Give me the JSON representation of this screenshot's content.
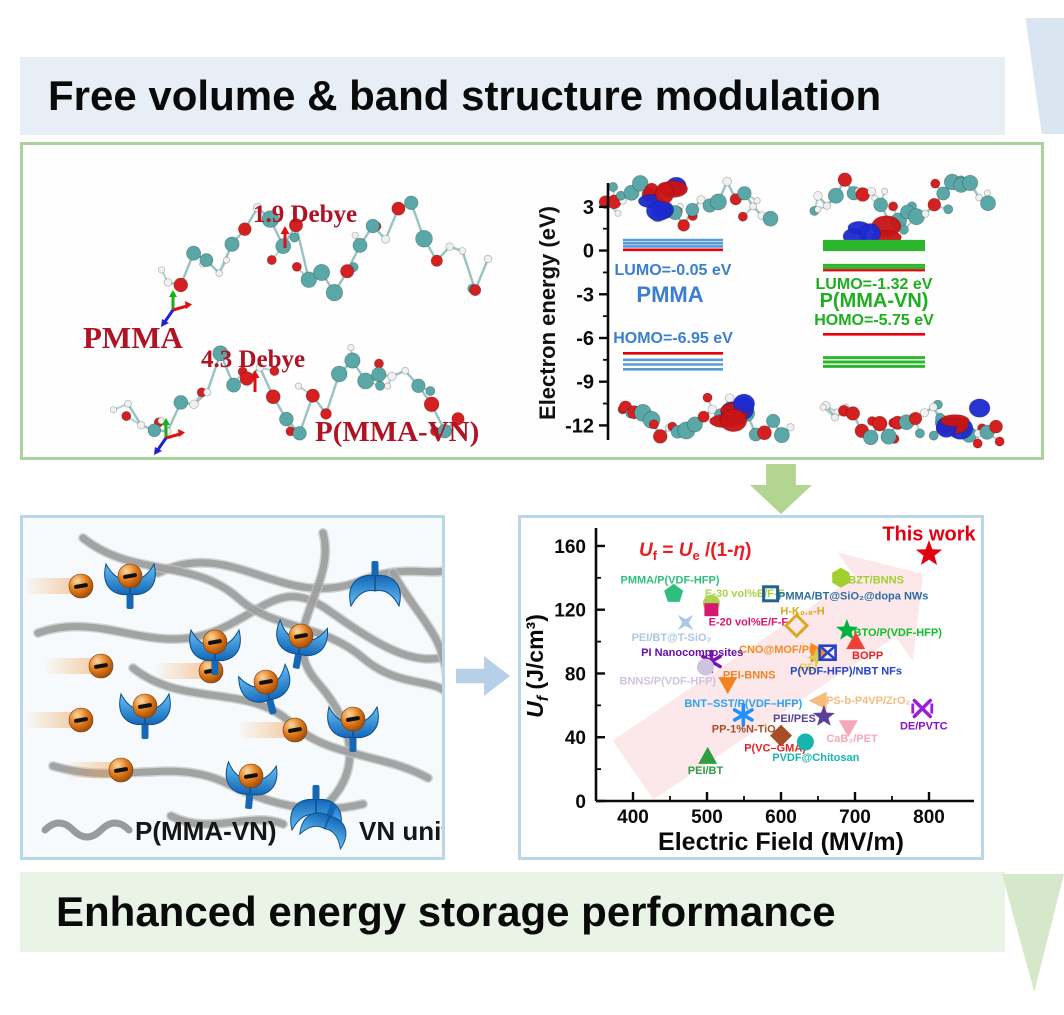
{
  "banners": {
    "top": "Free volume & band structure modulation",
    "bottom": "Enhanced energy storage performance"
  },
  "molecular_panel": {
    "pmma_name": "PMMA",
    "pmma_dipole": "1.9 Debye",
    "vn_name": "P(MMA-VN)",
    "vn_dipole": "4.3 Debye",
    "label_color": "#b01324",
    "energy_axis_label": "Electron energy (eV)",
    "energy_ticks": [
      3,
      0,
      -3,
      -6,
      -9,
      -12
    ],
    "level_red": "#e8000a",
    "pmma_diagram": {
      "lumo_text": "LUMO=-0.05 eV",
      "name": "PMMA",
      "homo_text": "HOMO=-6.95 eV",
      "lumo_levels_blue": [
        0.72,
        0.5,
        0.28
      ],
      "lumo_level_red": 0.05,
      "homo_level_red": -7.05,
      "homo_levels_blue": [
        -7.5,
        -7.82,
        -8.15
      ],
      "text_color": "#3b7fd0",
      "level_color": "#5b9bd5"
    },
    "vn_diagram": {
      "lumo_text": "LUMO=-1.32 eV",
      "name": "P(MMA-VN)",
      "homo_text": "HOMO=-5.75 eV",
      "lumo_band_green": [
        0.62,
        0.44,
        0.26,
        0.08
      ],
      "lumo_levels_green": [
        -1.0,
        -1.18
      ],
      "lumo_level_red": -1.35,
      "homo_level_red": -5.75,
      "homo_levels_green": [
        -7.35,
        -7.65,
        -7.95
      ],
      "text_color": "#1fae1f",
      "level_color": "#2db52d"
    }
  },
  "scheme_panel": {
    "chain_legend": "P(MMA-VN)",
    "vn_legend": "VN unit"
  },
  "chart_data": {
    "type": "scatter",
    "xlabel": "Electric Field (MV/m)",
    "ylabel_u": "U",
    "ylabel_sub": "f",
    "ylabel_rest": " (J/cm³)",
    "formula_color": "#ed1c24",
    "formula_segments": [
      {
        "t": "U",
        "i": 1
      },
      {
        "t": "f",
        "sub": 1
      },
      {
        "t": " = "
      },
      {
        "t": "U",
        "i": 1
      },
      {
        "t": "e",
        "sub": 1
      },
      {
        "t": " /(1-"
      },
      {
        "t": "η",
        "i": 1
      },
      {
        "t": ")"
      }
    ],
    "xlim": [
      350,
      850
    ],
    "ylim": [
      0,
      170
    ],
    "xticks": [
      400,
      500,
      600,
      700,
      800
    ],
    "yticks": [
      0,
      40,
      80,
      120,
      160
    ],
    "points": [
      {
        "name": "PMMA/P(VDF-HFP)",
        "x": 455,
        "y": 130,
        "marker": "pentagon",
        "color": "#2ebf7e",
        "label": "PMMA/P(VDF-HFP)",
        "lx": 450,
        "ly": 139,
        "lcolor": "#2ebf7e",
        "anchor": "middle"
      },
      {
        "name": "E-30 vol%E/F-F",
        "x": 506,
        "y": 124,
        "marker": "circle",
        "color": "#aad34f",
        "label": "E-30 vol%E/F-F",
        "lx": 551,
        "ly": 130.5,
        "lcolor": "#aad34f",
        "anchor": "middle"
      },
      {
        "name": "E-20 vol%E/F-F",
        "x": 506,
        "y": 120,
        "marker": "square",
        "color": "#d6186e",
        "label": "E-20 vol%E/F-F",
        "lx": 556,
        "ly": 112.5,
        "lcolor": "#d6186e",
        "anchor": "middle"
      },
      {
        "name": "PEI/BT@T-SiO2",
        "x": 471,
        "y": 112,
        "marker": "xstar",
        "color": "#aac8e4",
        "label": "PEI/BT@T-SiO₂",
        "lx": 452,
        "ly": 103,
        "lcolor": "#aac8e4",
        "anchor": "middle"
      },
      {
        "name": "PMMA/BT@SiO2@dopa NWs",
        "x": 586,
        "y": 130,
        "marker": "osquare",
        "color": "#1f6391",
        "label": "PMMA/BT@SiO₂@dopa NWs",
        "lx": 596,
        "ly": 129,
        "lcolor": "#2c6ea0",
        "anchor": "start"
      },
      {
        "name": "H-K0.8-H",
        "x": 621,
        "y": 110,
        "marker": "odiamond",
        "color": "#dca81e",
        "label": "H-K₀.₈-H",
        "lx": 629,
        "ly": 119.5,
        "lcolor": "#dca81e",
        "anchor": "middle"
      },
      {
        "name": "BZT/BNNS",
        "x": 681,
        "y": 140,
        "marker": "hexagon",
        "color": "#a2cf2e",
        "label": "BZT/BNNS",
        "lx": 691,
        "ly": 139,
        "lcolor": "#a2cf2e",
        "anchor": "start"
      },
      {
        "name": "This work",
        "x": 800,
        "y": 155,
        "marker": "star5",
        "color": "#e3000f",
        "label": "This work",
        "lx": 800,
        "ly": 166,
        "lcolor": "#e3000f",
        "anchor": "middle",
        "big": true
      },
      {
        "name": "BTO/P(VDF-HFP)",
        "x": 689,
        "y": 107,
        "marker": "star5",
        "color": "#00b33e",
        "label": "BTO/P(VDF-HFP)",
        "lx": 698,
        "ly": 106,
        "lcolor": "#0ec02a",
        "anchor": "start"
      },
      {
        "name": "BOPP",
        "x": 701,
        "y": 100,
        "marker": "triu",
        "color": "#ef4136",
        "label": "BOPP",
        "lx": 717,
        "ly": 91.5,
        "lcolor": "#e02424",
        "anchor": "middle"
      },
      {
        "name": "CNO@MOF/PI",
        "x": 651,
        "y": 93,
        "marker": "trir",
        "color": "#f68b1f",
        "label": "CNO@MOF/PI",
        "lx": 642,
        "ly": 95.5,
        "lcolor": "#f68b1f",
        "anchor": "end"
      },
      {
        "name": "PEI",
        "x": 648,
        "y": 90,
        "marker": "star4",
        "color": "#d9cb52",
        "label": "PEI",
        "lx": 637,
        "ly": 84,
        "lcolor": "#e3d34f",
        "anchor": "middle"
      },
      {
        "name": "P(VDF-HFP)/NBT NFs",
        "x": 663,
        "y": 93,
        "marker": "boxx",
        "color": "#2443c8",
        "label": "P(VDF-HFP)/NBT NFs",
        "lx": 688,
        "ly": 82,
        "lcolor": "#2443c8",
        "anchor": "middle"
      },
      {
        "name": "PI Nanocomposites",
        "x": 506,
        "y": 87.5,
        "marker": "asterisk6",
        "color": "#7a15b5",
        "label": "PI Nanocomposites",
        "lx": 480,
        "ly": 93.5,
        "lcolor": "#6a0dad",
        "anchor": "middle"
      },
      {
        "name": "BNNS/P(VDF-HFP)",
        "x": 498,
        "y": 84,
        "marker": "circle",
        "color": "#cfc3df",
        "label": "BNNS/P(VDF-HFP)",
        "lx": 447,
        "ly": 75.5,
        "lcolor": "#cfc3df",
        "anchor": "middle"
      },
      {
        "name": "PEI-BNNS",
        "x": 528,
        "y": 73,
        "marker": "trid",
        "color": "#f58220",
        "label": "PEI-BNNS",
        "lx": 557,
        "ly": 79.5,
        "lcolor": "#f58220",
        "anchor": "middle"
      },
      {
        "name": "PS-b-P4VP/ZrO2",
        "x": 651,
        "y": 63,
        "marker": "tril",
        "color": "#f5bc7e",
        "label": "PS-b-P4VP/ZrO₂",
        "lx": 661,
        "ly": 63.5,
        "lcolor": "#f5bc7e",
        "anchor": "start"
      },
      {
        "name": "BNT-SST/P(VDF-HFP)",
        "x": 549,
        "y": 54,
        "marker": "asterisk6",
        "color": "#1e90ff",
        "label": "BNT–SST/P(VDF–HFP)",
        "lx": 549,
        "ly": 61.5,
        "lcolor": "#29a3f0",
        "anchor": "middle"
      },
      {
        "name": "PEI/PES",
        "x": 658,
        "y": 53,
        "marker": "star5",
        "color": "#584099",
        "label": "PEI/PES",
        "lx": 647,
        "ly": 52,
        "lcolor": "#584099",
        "anchor": "end"
      },
      {
        "name": "DE/PVTC",
        "x": 791,
        "y": 58,
        "marker": "xlines",
        "color": "#9b1fd8",
        "label": "DE/PVTC",
        "lx": 793,
        "ly": 47.5,
        "lcolor": "#8b10cc",
        "anchor": "middle"
      },
      {
        "name": "CaB2/PET",
        "x": 691,
        "y": 46,
        "marker": "trid",
        "color": "#f6a7b8",
        "label": "CaB₂/PET",
        "lx": 696,
        "ly": 39.5,
        "lcolor": "#f6a7b8",
        "anchor": "middle"
      },
      {
        "name": "PP-1%N-TiO2",
        "x": 600,
        "y": 41,
        "marker": "diamond",
        "color": "#a74e26",
        "label": "PP-1%N-TiO₂",
        "lx": 553,
        "ly": 45.5,
        "lcolor": "#a74e26",
        "anchor": "middle"
      },
      {
        "name": "P(VC-GMA)",
        "x": 600,
        "y": 41,
        "marker": "none",
        "color": "#e02424",
        "label": "P(VC–GMA)",
        "lx": 592,
        "ly": 33.5,
        "lcolor": "#e02424",
        "anchor": "middle"
      },
      {
        "name": "PVDF@Chitosan",
        "x": 633,
        "y": 37,
        "marker": "circle",
        "color": "#17b5ad",
        "label": "PVDF@Chitosan",
        "lx": 647,
        "ly": 27.5,
        "lcolor": "#17b5ad",
        "anchor": "middle"
      },
      {
        "name": "PEI/BT",
        "x": 501,
        "y": 28,
        "marker": "triu",
        "color": "#2f9e41",
        "label": "PEI/BT",
        "lx": 498,
        "ly": 19.5,
        "lcolor": "#2f9e41",
        "anchor": "middle"
      }
    ]
  }
}
